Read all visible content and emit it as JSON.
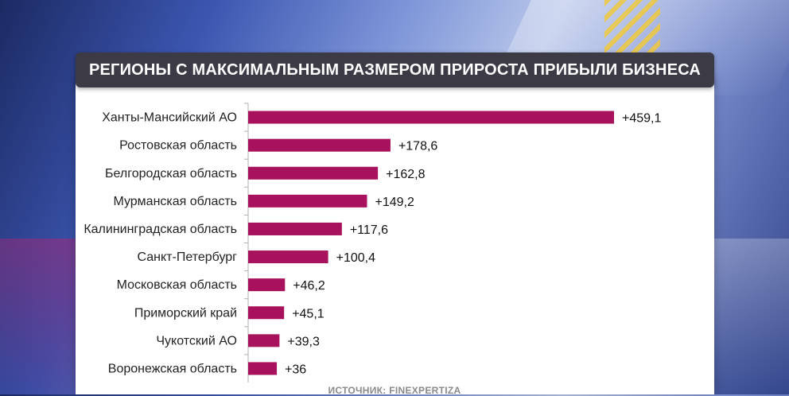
{
  "title": "РЕГИОНЫ С МАКСИМАЛЬНЫМ РАЗМЕРОМ ПРИРОСТА ПРИБЫЛИ БИЗНЕСА",
  "source": "ИСТОЧНИК: FINEXPERTIZA",
  "colors": {
    "bar": "#a8125d",
    "title_bg": "#3c3a44",
    "panel_bg": "#ffffff"
  },
  "chart_data": {
    "type": "bar",
    "orientation": "horizontal",
    "title": "РЕГИОНЫ С МАКСИМАЛЬНЫМ РАЗМЕРОМ ПРИРОСТА ПРИБЫЛИ БИЗНЕСА",
    "categories": [
      "Ханты-Мансийский АО",
      "Ростовская область",
      "Белгородская область",
      "Мурманская область",
      "Калининградская область",
      "Санкт-Петербург",
      "Московская область",
      "Приморский край",
      "Чукотский АО",
      "Воронежская область"
    ],
    "values": [
      459.1,
      178.6,
      162.8,
      149.2,
      117.6,
      100.4,
      46.2,
      45.1,
      39.3,
      36
    ],
    "labels": [
      "+459,1",
      "+178,6",
      "+162,8",
      "+149,2",
      "+117,6",
      "+100,4",
      "+46,2",
      "+45,1",
      "+39,3",
      "+36"
    ],
    "xlim": [
      0,
      459.1
    ],
    "grid": false,
    "legend": "none"
  }
}
